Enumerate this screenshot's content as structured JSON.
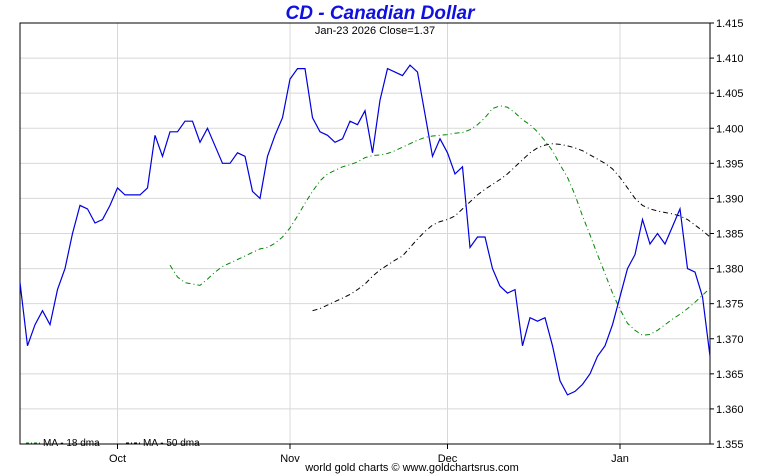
{
  "chart_data": {
    "type": "line",
    "title": "CD  -  Canadian Dollar",
    "subtitle": "Jan-23  2026   Close=1.37",
    "credit": "world gold charts © www.goldchartsrus.com",
    "ylim": [
      1.355,
      1.415
    ],
    "y_ticks": [
      "1.355",
      "1.360",
      "1.365",
      "1.370",
      "1.375",
      "1.380",
      "1.385",
      "1.390",
      "1.395",
      "1.400",
      "1.405",
      "1.410",
      "1.415"
    ],
    "x_ticks": [
      {
        "label": "Oct",
        "index": 13
      },
      {
        "label": "Nov",
        "index": 36
      },
      {
        "label": "Dec",
        "index": 57
      },
      {
        "label": "Jan",
        "index": 80
      }
    ],
    "grid": true,
    "legend": "bottom-left",
    "colors": {
      "price": "#0000dd",
      "ma18": "#008800",
      "ma50": "#000000",
      "grid": "#d8d8d8"
    },
    "series": [
      {
        "name": "CD",
        "values": [
          1.378,
          1.369,
          1.372,
          1.374,
          1.372,
          1.377,
          1.38,
          1.385,
          1.389,
          1.3885,
          1.3865,
          1.387,
          1.389,
          1.3915,
          1.3905,
          1.3905,
          1.3905,
          1.3915,
          1.399,
          1.396,
          1.3995,
          1.3995,
          1.401,
          1.401,
          1.398,
          1.4,
          1.3975,
          1.395,
          1.395,
          1.3965,
          1.396,
          1.391,
          1.39,
          1.396,
          1.399,
          1.4015,
          1.407,
          1.4085,
          1.4085,
          1.4015,
          1.3995,
          1.399,
          1.398,
          1.3985,
          1.401,
          1.4005,
          1.4025,
          1.3965,
          1.404,
          1.4085,
          1.408,
          1.4075,
          1.409,
          1.408,
          1.402,
          1.396,
          1.3985,
          1.3965,
          1.3935,
          1.3945,
          1.383,
          1.3845,
          1.3845,
          1.38,
          1.3775,
          1.3765,
          1.377,
          1.369,
          1.373,
          1.3725,
          1.373,
          1.369,
          1.364,
          1.362,
          1.3625,
          1.3635,
          1.365,
          1.3675,
          1.369,
          1.372,
          1.376,
          1.38,
          1.382,
          1.387,
          1.3835,
          1.385,
          1.3835,
          1.386,
          1.3885,
          1.38,
          1.3795,
          1.376,
          1.3675
        ]
      },
      {
        "name": "MA - 18 dma",
        "values": [
          1.3805,
          1.3788,
          1.378,
          1.3778,
          1.3776,
          1.3785,
          1.3795,
          1.3803,
          1.3808,
          1.3813,
          1.3818,
          1.3823,
          1.3828,
          1.383,
          1.3836,
          1.3845,
          1.3858,
          1.3875,
          1.3893,
          1.391,
          1.3925,
          1.3935,
          1.394,
          1.3945,
          1.3948,
          1.3952,
          1.3958,
          1.3961,
          1.3962,
          1.3964,
          1.3968,
          1.3973,
          1.3978,
          1.3983,
          1.3987,
          1.3989,
          1.399,
          1.3991,
          1.3993,
          1.3994,
          1.3998,
          1.4005,
          1.4015,
          1.4028,
          1.4032,
          1.403,
          1.4022,
          1.4012,
          1.4005,
          1.3995,
          1.3982,
          1.3968,
          1.3948,
          1.393,
          1.3905,
          1.3875,
          1.3848,
          1.382,
          1.3793,
          1.3765,
          1.3742,
          1.3722,
          1.3712,
          1.3705,
          1.3706,
          1.3712,
          1.372,
          1.3728,
          1.3735,
          1.3743,
          1.3752,
          1.3762,
          1.3772
        ]
      },
      {
        "name": "MA - 50 dma",
        "values": [
          1.374,
          1.3743,
          1.3748,
          1.3753,
          1.3758,
          1.3763,
          1.377,
          1.3778,
          1.3789,
          1.3798,
          1.3805,
          1.3812,
          1.3818,
          1.383,
          1.3842,
          1.3853,
          1.3862,
          1.3867,
          1.387,
          1.3875,
          1.3885,
          1.3895,
          1.3905,
          1.3913,
          1.392,
          1.3927,
          1.3935,
          1.3945,
          1.3955,
          1.3965,
          1.3972,
          1.3976,
          1.3978,
          1.3977,
          1.3975,
          1.3972,
          1.3968,
          1.3962,
          1.3956,
          1.395,
          1.3942,
          1.393,
          1.3915,
          1.39,
          1.389,
          1.3885,
          1.3882,
          1.388,
          1.3878,
          1.3875,
          1.387,
          1.3862,
          1.3854,
          1.3845
        ]
      }
    ]
  }
}
